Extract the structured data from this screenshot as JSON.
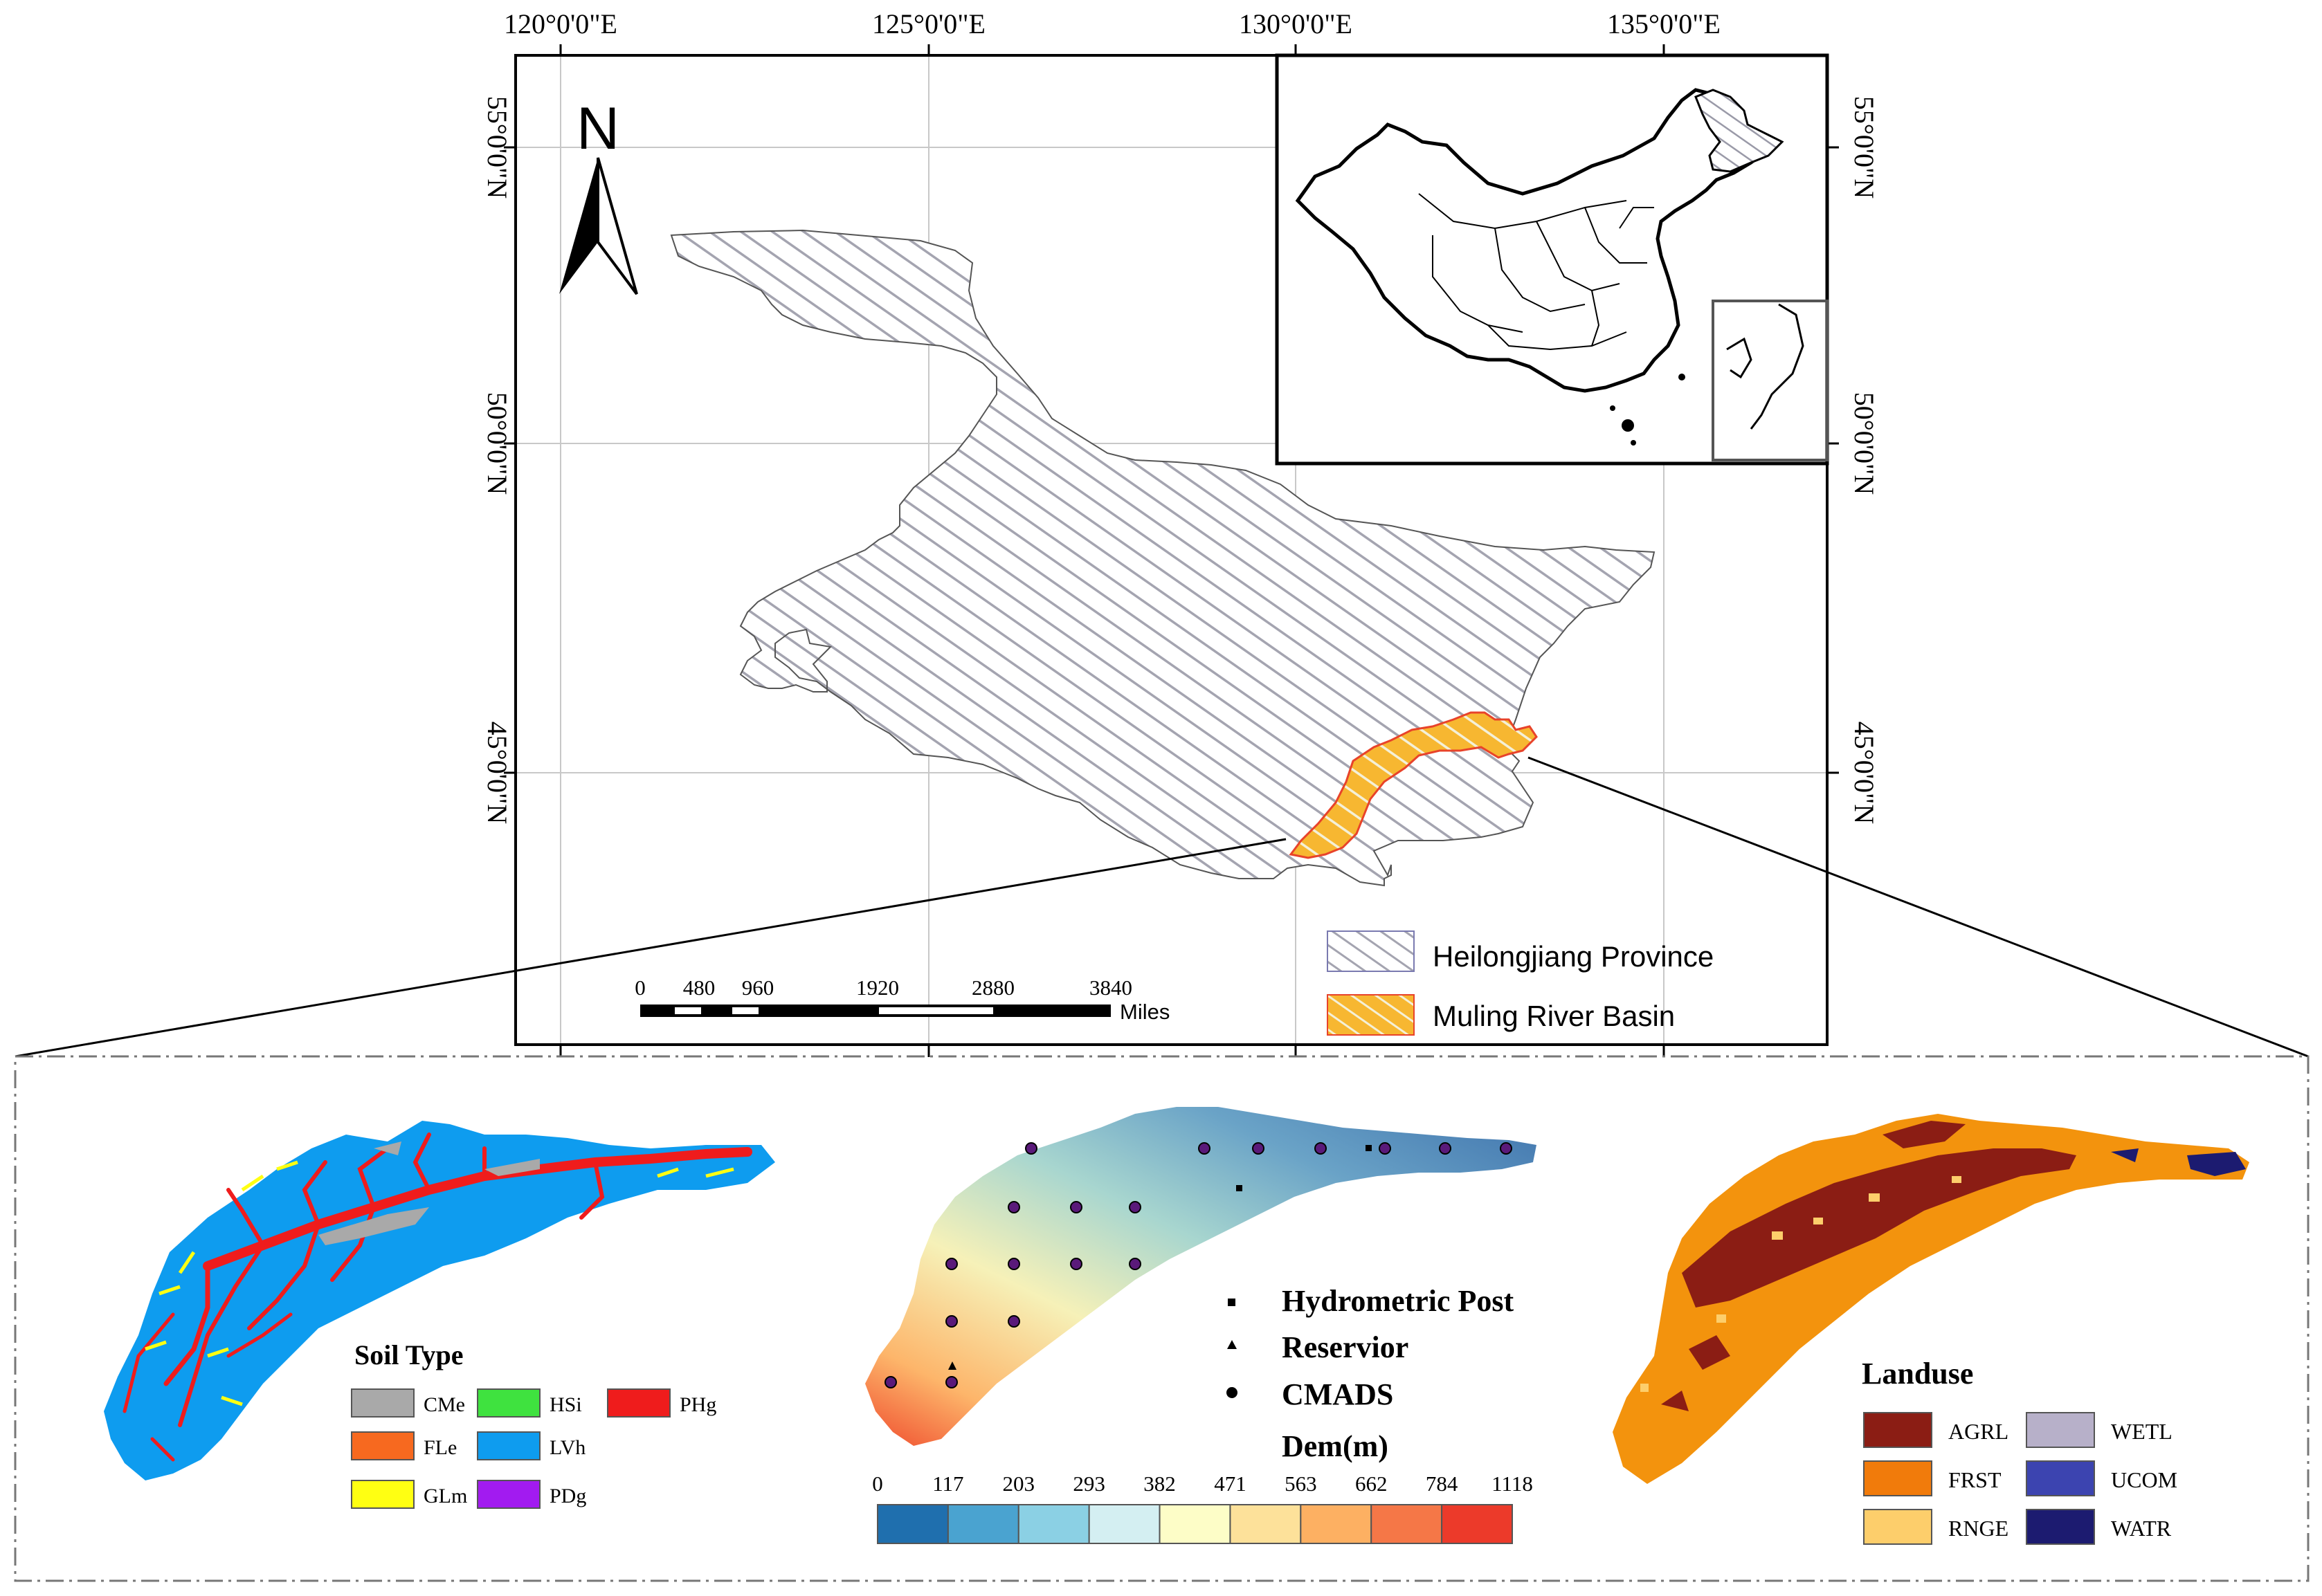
{
  "map": {
    "grid_labels": {
      "lon": [
        "120°0'0\"E",
        "125°0'0\"E",
        "130°0'0\"E",
        "135°0'0\"E"
      ],
      "lat": [
        "55°0'0\"N",
        "50°0'0\"N",
        "45°0'0\"N"
      ]
    },
    "north_arrow_label": "N",
    "scale_bar": {
      "ticks": [
        "0",
        "480",
        "960",
        "1920",
        "2880",
        "3840"
      ],
      "unit": "Miles"
    },
    "legend": [
      {
        "label": "Heilongjiang Province"
      },
      {
        "label": "Muling River Basin"
      }
    ],
    "colors": {
      "province_hatch": "#9a9aa8",
      "basin_fill": "#f7b731",
      "basin_hatch": "#e8432a",
      "frame": "#000000"
    }
  },
  "soil_panel": {
    "title": "Soil Type",
    "classes": [
      {
        "code": "CMe",
        "color": "#a9a9a9"
      },
      {
        "code": "HSi",
        "color": "#3fe23f"
      },
      {
        "code": "PHg",
        "color": "#ef1c1c"
      },
      {
        "code": "FLe",
        "color": "#f7691f"
      },
      {
        "code": "LVh",
        "color": "#0e9cef"
      },
      {
        "code": "GLm",
        "color": "#ffff12"
      },
      {
        "code": "PDg",
        "color": "#a21bf0"
      }
    ]
  },
  "dem_panel": {
    "stations_legend": [
      {
        "label": "Hydrometric Post",
        "symbol": "square"
      },
      {
        "label": "Reservior",
        "symbol": "triangle"
      },
      {
        "label": "CMADS",
        "symbol": "circle"
      }
    ],
    "colorbar_title": "Dem(m)",
    "colorbar_breaks": [
      "0",
      "117",
      "203",
      "293",
      "382",
      "471",
      "563",
      "662",
      "784",
      "1118"
    ],
    "colorbar_colors": [
      "#1f6fae",
      "#4aa3d0",
      "#8bd0e4",
      "#d4eff2",
      "#fdfdc7",
      "#fde19a",
      "#fdb062",
      "#f57747",
      "#ec3a2a"
    ]
  },
  "landuse_panel": {
    "title": "Landuse",
    "classes": [
      {
        "code": "AGRL",
        "color": "#8b1d14"
      },
      {
        "code": "WETL",
        "color": "#b7b0c9"
      },
      {
        "code": "FRST",
        "color": "#f17b0b"
      },
      {
        "code": "UCOM",
        "color": "#3c44b0"
      },
      {
        "code": "RNGE",
        "color": "#fdce6b"
      },
      {
        "code": "WATR",
        "color": "#1c1b70"
      }
    ]
  }
}
